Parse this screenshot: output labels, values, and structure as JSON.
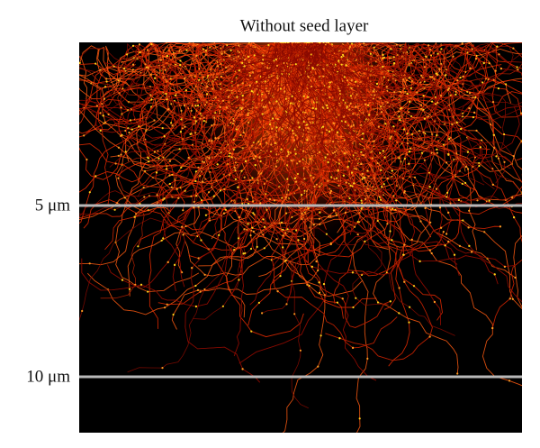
{
  "title": "Without seed layer",
  "scale_labels": [
    "5 μm",
    "10 μm"
  ]
}
